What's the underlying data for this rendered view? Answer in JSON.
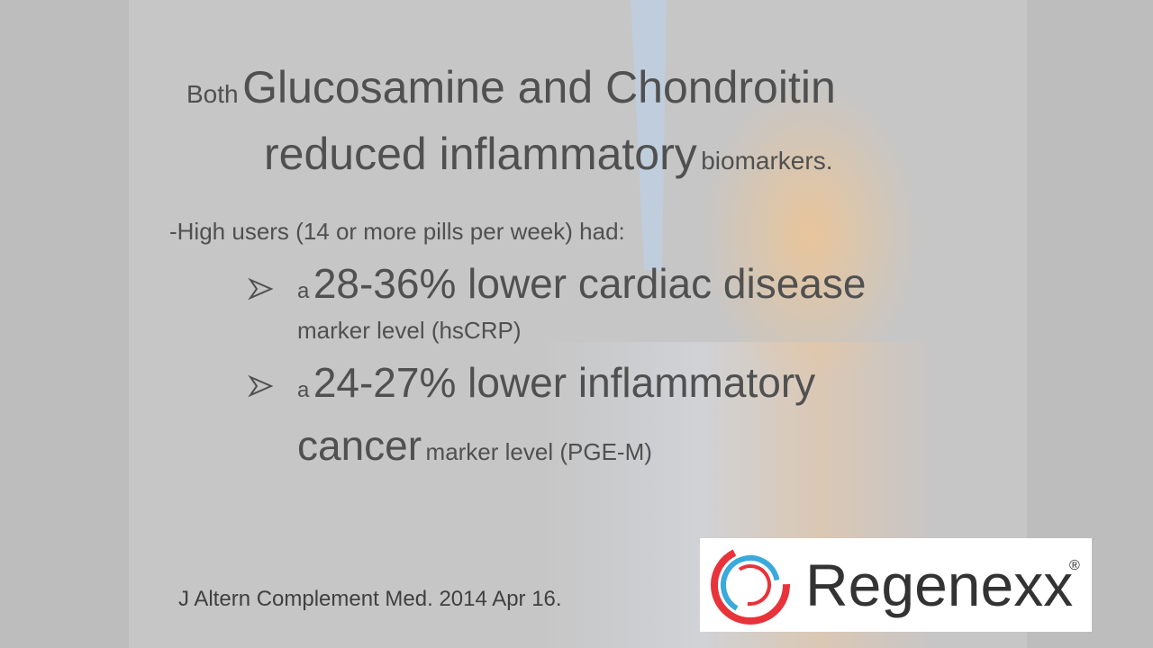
{
  "title": {
    "parts": [
      "Both",
      "Glucosamine and Chondroitin",
      "reduced inflammatory",
      "biomarkers."
    ]
  },
  "intro": "-High users (14 or more pills per week) had:",
  "bullets": [
    {
      "parts": [
        "a",
        "28-36% lower cardiac disease",
        "marker level (hsCRP)"
      ]
    },
    {
      "parts": [
        "a",
        "24-27% lower inflammatory",
        "cancer",
        "marker level (PGE-M)"
      ]
    }
  ],
  "citation": "J Altern Complement Med. 2014 Apr 16.",
  "logo": {
    "name": "Regenexx",
    "mark": "®"
  }
}
